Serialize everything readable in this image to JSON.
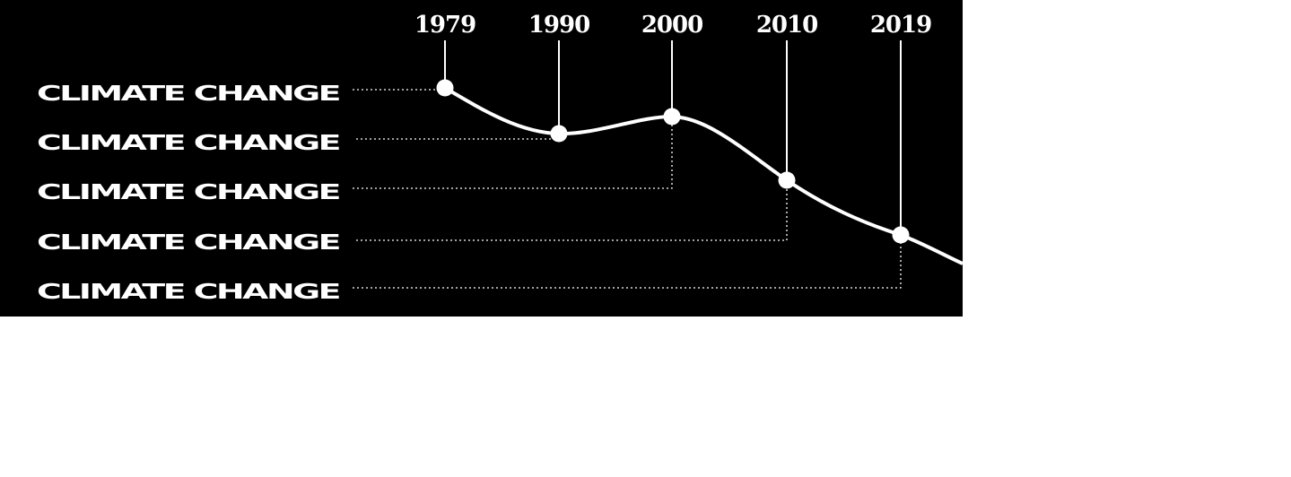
{
  "years": [
    "1979",
    "1990",
    "2000",
    "2010",
    "2019"
  ],
  "rows": [
    {
      "label": "CLIMATE CHANGE"
    },
    {
      "label": "CLIMATE CHANGE"
    },
    {
      "label": "CLIMATE CHANGE"
    },
    {
      "label": "CLIMATE CHANGE"
    },
    {
      "label": "CLIMATE CHANGE"
    }
  ],
  "colors": {
    "background": "#000000",
    "foreground": "#ffffff",
    "page": "#ffffff"
  }
}
